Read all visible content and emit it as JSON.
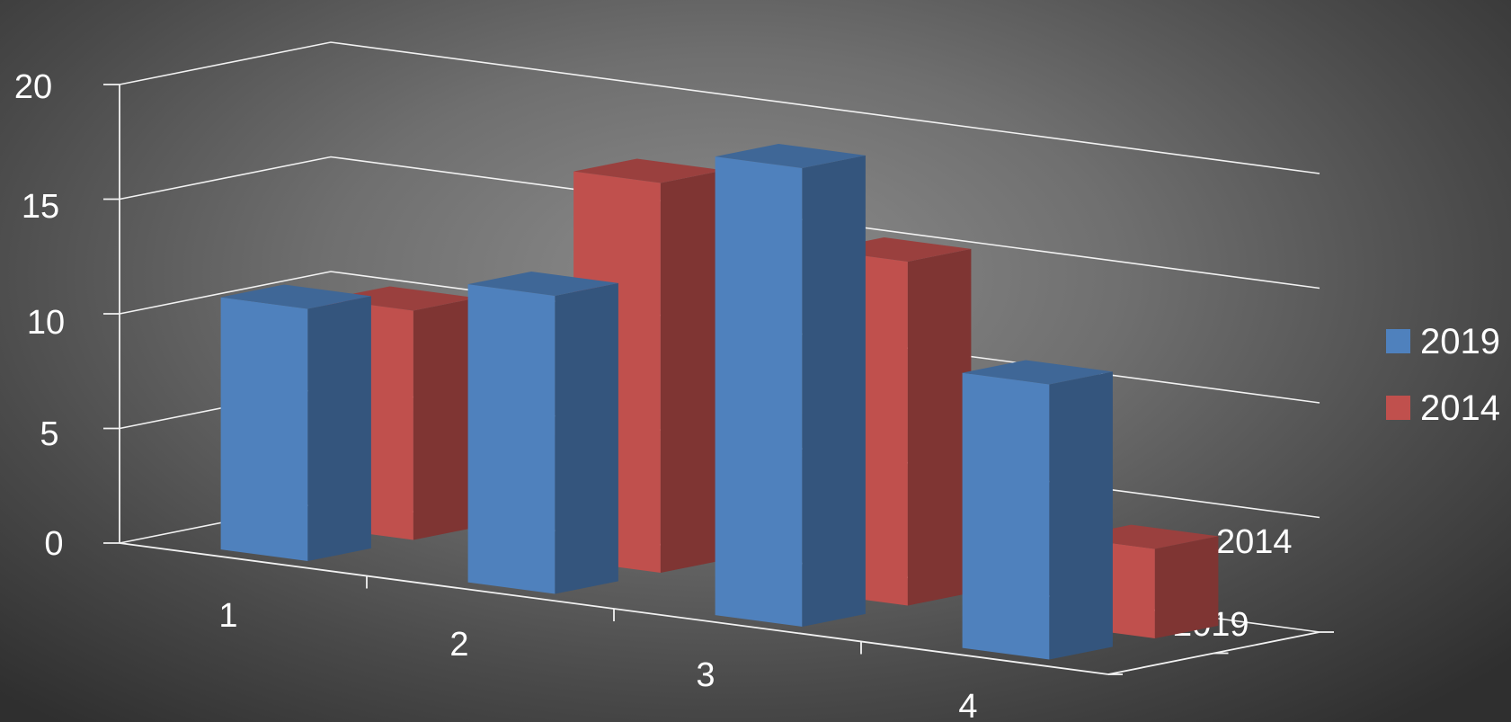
{
  "chart_data": {
    "type": "bar",
    "subtype": "3d-column",
    "categories": [
      "1",
      "2",
      "3",
      "4"
    ],
    "series": [
      {
        "name": "2019",
        "values": [
          11,
          13,
          20,
          12
        ],
        "color": "#4f81bd"
      },
      {
        "name": "2014",
        "values": [
          10,
          17,
          15,
          3.9
        ],
        "color": "#c0504d"
      }
    ],
    "depth_categories": [
      "2019",
      "2014"
    ],
    "y_ticks": [
      "0",
      "5",
      "10",
      "15",
      "20"
    ],
    "ylim": [
      0,
      20
    ],
    "grid": true,
    "legend_position": "right"
  }
}
